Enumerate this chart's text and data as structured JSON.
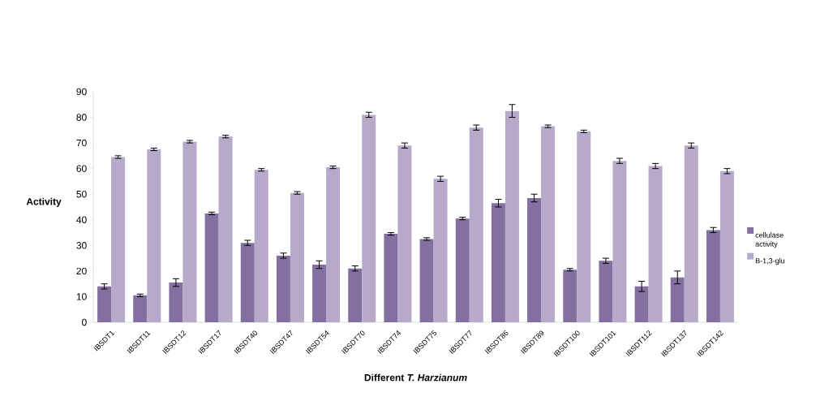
{
  "chart_data": {
    "type": "bar",
    "xlabel": "Different *T. Harzianum*",
    "ylabel": "Activity",
    "categories": [
      "IBSDT1",
      "IBSDT11",
      "IBSDT12",
      "IBSDT17",
      "IBSDT40",
      "IBSDT47",
      "IBSDT54",
      "IBSDT70",
      "IBSDT74",
      "IBSDT75",
      "IBSDT77",
      "IBSDT86",
      "IBSDT89",
      "IBSDT100",
      "IBSDT101",
      "IBSDT112",
      "IBSDT137",
      "IBSDT142"
    ],
    "series": [
      {
        "name": "cellulase activity",
        "color": "#8470a0",
        "values": [
          14,
          10.5,
          15.5,
          42.5,
          31,
          26,
          22.5,
          21,
          34.5,
          32.5,
          40.5,
          46.5,
          48.5,
          20.5,
          24,
          14,
          17.5,
          36
        ],
        "errors": [
          1,
          0.5,
          1.5,
          0.5,
          1,
          1,
          1.5,
          1,
          0.5,
          0.5,
          0.5,
          1.5,
          1.5,
          0.5,
          1,
          2,
          2.5,
          1
        ]
      },
      {
        "name": "B-1,3-glu",
        "color": "#b6a9c9",
        "values": [
          64.5,
          67.5,
          70.5,
          72.5,
          59.5,
          50.5,
          60.5,
          81,
          69,
          56,
          76,
          82.5,
          76.5,
          74.5,
          63,
          61,
          69,
          59
        ],
        "errors": [
          0.5,
          0.5,
          0.5,
          0.5,
          0.5,
          0.5,
          0.5,
          1,
          1,
          1,
          1,
          2.5,
          0.5,
          0.5,
          1,
          1,
          1,
          1
        ]
      }
    ],
    "ylim": [
      0,
      90
    ],
    "yticks": [
      0,
      10,
      20,
      30,
      40,
      50,
      60,
      70,
      80,
      90
    ],
    "legend": "right"
  }
}
